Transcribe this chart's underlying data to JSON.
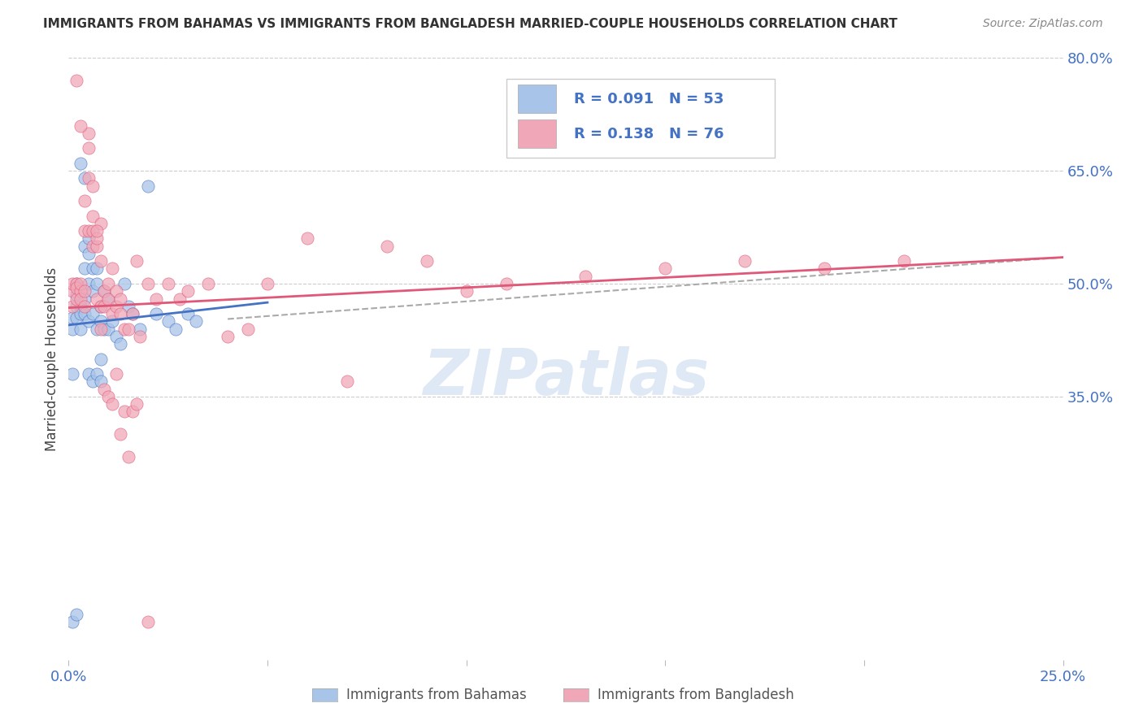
{
  "title": "IMMIGRANTS FROM BAHAMAS VS IMMIGRANTS FROM BANGLADESH MARRIED-COUPLE HOUSEHOLDS CORRELATION CHART",
  "source": "Source: ZipAtlas.com",
  "ylabel": "Married-couple Households",
  "x_min": 0.0,
  "x_max": 0.25,
  "y_min": 0.0,
  "y_max": 0.8,
  "legend_r1": "R = 0.091",
  "legend_n1": "N = 53",
  "legend_r2": "R = 0.138",
  "legend_n2": "N = 76",
  "color_bahamas": "#a8c4e8",
  "color_bangladesh": "#f0a8b8",
  "color_line_bahamas": "#4472c4",
  "color_line_bangladesh": "#e05878",
  "color_dashed": "#aaaaaa",
  "watermark": "ZIPatlas",
  "bah_x": [
    0.001,
    0.001,
    0.001,
    0.002,
    0.002,
    0.002,
    0.002,
    0.003,
    0.003,
    0.003,
    0.003,
    0.004,
    0.004,
    0.004,
    0.004,
    0.005,
    0.005,
    0.005,
    0.005,
    0.006,
    0.006,
    0.006,
    0.007,
    0.007,
    0.007,
    0.008,
    0.008,
    0.008,
    0.009,
    0.009,
    0.01,
    0.01,
    0.011,
    0.012,
    0.013,
    0.014,
    0.015,
    0.016,
    0.018,
    0.02,
    0.022,
    0.025,
    0.027,
    0.03,
    0.032,
    0.003,
    0.004,
    0.005,
    0.006,
    0.007,
    0.008,
    0.001,
    0.002
  ],
  "bah_y": [
    0.455,
    0.44,
    0.38,
    0.5,
    0.485,
    0.47,
    0.455,
    0.49,
    0.47,
    0.46,
    0.44,
    0.55,
    0.52,
    0.48,
    0.46,
    0.56,
    0.54,
    0.5,
    0.45,
    0.52,
    0.49,
    0.46,
    0.52,
    0.5,
    0.44,
    0.47,
    0.45,
    0.4,
    0.49,
    0.44,
    0.48,
    0.44,
    0.45,
    0.43,
    0.42,
    0.5,
    0.47,
    0.46,
    0.44,
    0.63,
    0.46,
    0.45,
    0.44,
    0.46,
    0.45,
    0.66,
    0.64,
    0.38,
    0.37,
    0.38,
    0.37,
    0.05,
    0.06
  ],
  "ban_x": [
    0.001,
    0.001,
    0.001,
    0.002,
    0.002,
    0.002,
    0.003,
    0.003,
    0.003,
    0.004,
    0.004,
    0.004,
    0.005,
    0.005,
    0.005,
    0.006,
    0.006,
    0.006,
    0.007,
    0.007,
    0.007,
    0.008,
    0.008,
    0.008,
    0.009,
    0.009,
    0.01,
    0.01,
    0.011,
    0.011,
    0.012,
    0.012,
    0.013,
    0.013,
    0.014,
    0.015,
    0.016,
    0.017,
    0.018,
    0.02,
    0.022,
    0.025,
    0.028,
    0.03,
    0.035,
    0.04,
    0.045,
    0.05,
    0.06,
    0.07,
    0.08,
    0.09,
    0.1,
    0.11,
    0.13,
    0.15,
    0.17,
    0.19,
    0.21,
    0.002,
    0.003,
    0.004,
    0.005,
    0.006,
    0.007,
    0.008,
    0.009,
    0.01,
    0.011,
    0.012,
    0.013,
    0.014,
    0.015,
    0.016,
    0.017,
    0.02
  ],
  "ban_y": [
    0.49,
    0.5,
    0.47,
    0.48,
    0.5,
    0.495,
    0.49,
    0.5,
    0.48,
    0.47,
    0.49,
    0.57,
    0.68,
    0.7,
    0.57,
    0.57,
    0.55,
    0.59,
    0.55,
    0.56,
    0.48,
    0.58,
    0.53,
    0.47,
    0.49,
    0.47,
    0.5,
    0.48,
    0.52,
    0.46,
    0.47,
    0.49,
    0.48,
    0.46,
    0.44,
    0.44,
    0.46,
    0.53,
    0.43,
    0.5,
    0.48,
    0.5,
    0.48,
    0.49,
    0.5,
    0.43,
    0.44,
    0.5,
    0.56,
    0.37,
    0.55,
    0.53,
    0.49,
    0.5,
    0.51,
    0.52,
    0.53,
    0.52,
    0.53,
    0.77,
    0.71,
    0.61,
    0.64,
    0.63,
    0.57,
    0.44,
    0.36,
    0.35,
    0.34,
    0.38,
    0.3,
    0.33,
    0.27,
    0.33,
    0.34,
    0.05
  ],
  "bah_trend_x": [
    0.0,
    0.05
  ],
  "bah_trend_y": [
    0.445,
    0.475
  ],
  "ban_trend_x": [
    0.0,
    0.25
  ],
  "ban_trend_y": [
    0.468,
    0.535
  ],
  "dash_trend_x": [
    0.04,
    0.25
  ],
  "dash_trend_y": [
    0.453,
    0.535
  ]
}
